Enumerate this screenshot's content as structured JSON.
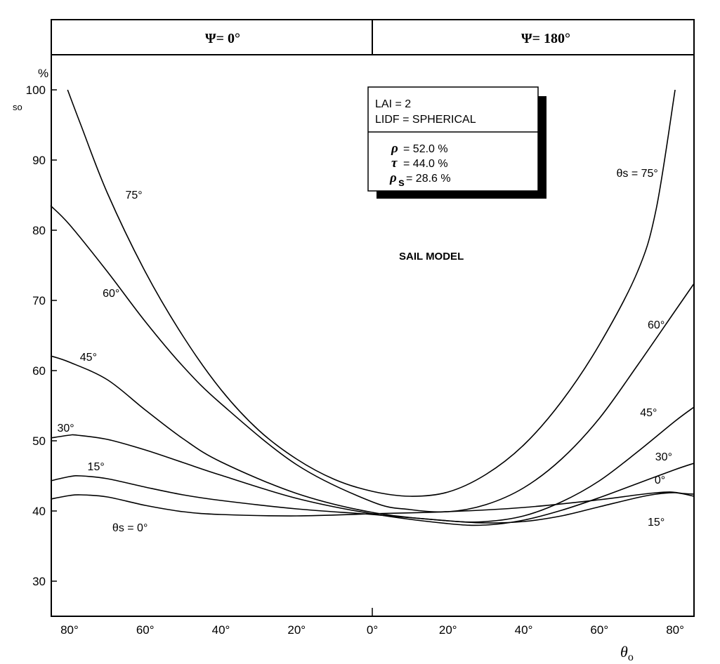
{
  "chart_data": {
    "type": "line",
    "title": "SAIL MODEL",
    "panels": [
      {
        "label": "Ψ=  0°",
        "x_range": [
          80,
          0
        ]
      },
      {
        "label": "Ψ=  180°",
        "x_range": [
          0,
          80
        ]
      }
    ],
    "xlabel": "θo",
    "ylabel": "%",
    "ylabel_prefix": "so",
    "ylim": [
      25,
      105
    ],
    "xlim": [
      -85,
      85
    ],
    "x_ticks": [
      {
        "value": -80,
        "label": "80°"
      },
      {
        "value": -60,
        "label": "60°"
      },
      {
        "value": -40,
        "label": "40°"
      },
      {
        "value": -20,
        "label": "20°"
      },
      {
        "value": 0,
        "label": "0°"
      },
      {
        "value": 20,
        "label": "20°"
      },
      {
        "value": 40,
        "label": "40°"
      },
      {
        "value": 60,
        "label": "60°"
      },
      {
        "value": 80,
        "label": "80°"
      }
    ],
    "y_ticks": [
      {
        "value": 30,
        "label": "30"
      },
      {
        "value": 40,
        "label": "40"
      },
      {
        "value": 50,
        "label": "50"
      },
      {
        "value": 60,
        "label": "60"
      },
      {
        "value": 70,
        "label": "70"
      },
      {
        "value": 80,
        "label": "80"
      },
      {
        "value": 90,
        "label": "90"
      },
      {
        "value": 100,
        "label": "100"
      }
    ],
    "parameters": {
      "lai": "LAI    = 2",
      "lidf": "LIDF = SPHERICAL",
      "rho_symbol": "ρ",
      "rho_value": "= 52.0 %",
      "tau_symbol": "τ",
      "tau_value": "= 44.0 %",
      "rhos_symbol": "ρ",
      "rhos_sub": "s",
      "rhos_value": "= 28.6 %"
    },
    "series": [
      {
        "name": "θs = 0°",
        "x": [
          -85,
          -80,
          -77,
          -70,
          -60,
          -50,
          -40,
          -20,
          0,
          20,
          40,
          60,
          70,
          75,
          79,
          82,
          85
        ],
        "y": [
          41.7,
          42.2,
          42.3,
          42.0,
          40.8,
          39.9,
          39.5,
          39.3,
          39.6,
          39.9,
          40.5,
          41.6,
          42.3,
          42.6,
          42.7,
          42.5,
          42.4
        ]
      },
      {
        "name": "15°",
        "x": [
          -85,
          -80,
          -77,
          -70,
          -60,
          -50,
          -40,
          -20,
          0,
          20,
          30,
          40,
          50,
          60,
          70,
          75,
          80,
          85
        ],
        "y": [
          44.3,
          44.9,
          45.0,
          44.6,
          43.4,
          42.3,
          41.5,
          40.3,
          39.5,
          38.6,
          38.3,
          38.5,
          39.3,
          40.6,
          41.9,
          42.4,
          42.6,
          42.1
        ]
      },
      {
        "name": "30°",
        "x": [
          -85,
          -80,
          -78,
          -70,
          -60,
          -50,
          -40,
          -20,
          0,
          20,
          30,
          40,
          50,
          60,
          70,
          80,
          85
        ],
        "y": [
          50.4,
          50.8,
          50.8,
          50.2,
          48.7,
          46.9,
          45.1,
          41.8,
          39.6,
          38.2,
          38.0,
          38.7,
          40.1,
          41.9,
          43.9,
          45.9,
          46.8
        ]
      },
      {
        "name": "45°",
        "x": [
          -85,
          -80,
          -70,
          -60,
          -50,
          -40,
          -20,
          0,
          20,
          30,
          40,
          50,
          60,
          70,
          80,
          85
        ],
        "y": [
          62.1,
          61.2,
          58.7,
          54.4,
          50.3,
          47.0,
          42.5,
          39.8,
          38.6,
          38.5,
          39.3,
          41.3,
          44.3,
          48.4,
          52.8,
          54.8
        ]
      },
      {
        "name": "60°",
        "x": [
          -85,
          -80,
          -70,
          -60,
          -50,
          -40,
          -20,
          0,
          10,
          20,
          30,
          40,
          50,
          60,
          70,
          80,
          85
        ],
        "y": [
          83.5,
          80.8,
          74.1,
          67.0,
          60.6,
          55.3,
          46.6,
          41.3,
          40.2,
          39.9,
          40.9,
          43.3,
          47.4,
          53.2,
          60.7,
          68.5,
          72.4
        ]
      },
      {
        "name": "θs = 75°",
        "x": [
          -80.5,
          -77,
          -70,
          -60,
          -50,
          -40,
          -30,
          -20,
          -10,
          0,
          10,
          20,
          30,
          40,
          50,
          60,
          70,
          75,
          80
        ],
        "y": [
          100,
          95.0,
          85.3,
          74.1,
          64.9,
          57.3,
          51.5,
          47.4,
          44.5,
          42.8,
          42.1,
          42.7,
          45.2,
          49.4,
          55.6,
          63.7,
          74.0,
          83.0,
          100
        ]
      }
    ],
    "curve_labels": [
      {
        "text": "75°",
        "at": [
          -63,
          84.5
        ]
      },
      {
        "text": "60°",
        "at": [
          -69,
          70.5
        ]
      },
      {
        "text": "45°",
        "at": [
          -75,
          61.4
        ]
      },
      {
        "text": "30°",
        "at": [
          -81,
          51.3
        ]
      },
      {
        "text": "15°",
        "at": [
          -73,
          45.8
        ]
      },
      {
        "text": "θs = 75°",
        "at": [
          70,
          87.6
        ]
      },
      {
        "text": "60°",
        "at": [
          75,
          66.0
        ]
      },
      {
        "text": "45°",
        "at": [
          73,
          53.5
        ]
      },
      {
        "text": "30°",
        "at": [
          77,
          47.2
        ]
      },
      {
        "text": "0°",
        "at": [
          76,
          43.9
        ]
      },
      {
        "text": "15°",
        "at": [
          75,
          37.9
        ]
      },
      {
        "text": "θs = 0°",
        "at": [
          -64,
          37.1
        ]
      }
    ],
    "grid": false,
    "legend": "none",
    "color": "#000000"
  }
}
